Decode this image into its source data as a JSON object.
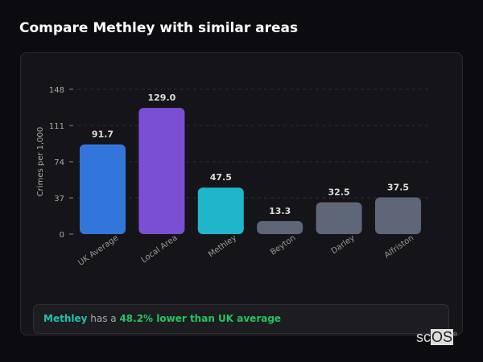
{
  "title": "Compare Methley with similar areas",
  "chart_data": {
    "type": "bar",
    "title": "",
    "ylabel": "Crimes per 1,000",
    "xlabel": "",
    "categories": [
      "UK Average",
      "Local Area",
      "Methley",
      "Beyton",
      "Darley",
      "Alfriston"
    ],
    "values": [
      91.7,
      129.0,
      47.5,
      13.3,
      32.5,
      37.5
    ],
    "value_labels": [
      "91.7",
      "129.0",
      "47.5",
      "13.3",
      "32.5",
      "37.5"
    ],
    "colors": [
      "#3376db",
      "#7b4fd4",
      "#1fb6cc",
      "#5f6677",
      "#5f6677",
      "#5f6677"
    ],
    "yticks": [
      0,
      37,
      74,
      111,
      148
    ],
    "ylim": [
      0,
      148
    ],
    "grid": true
  },
  "callout": {
    "area": "Methley",
    "middle": " has a ",
    "stat": "48.2% lower than UK average"
  },
  "logo": {
    "text_a": "sc",
    "text_b": "OS",
    "mark": "®"
  }
}
